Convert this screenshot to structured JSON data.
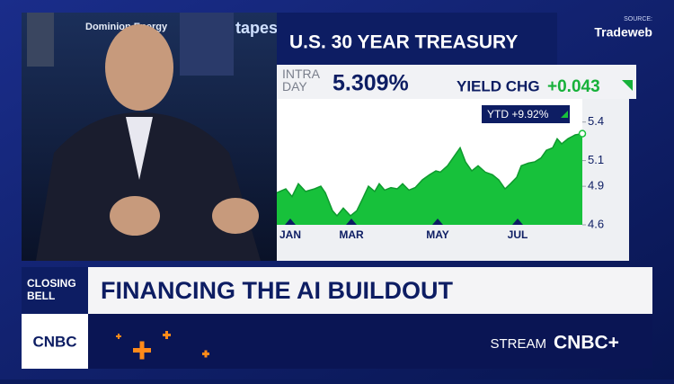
{
  "background": {
    "signs": [
      "Dominion Energy",
      "tapes"
    ]
  },
  "source": {
    "label": "SOURCE:",
    "name": "Tradeweb"
  },
  "chart_data": {
    "type": "area",
    "title": "U.S. 30 YEAR TREASURY",
    "intraday_label": "INTRA DAY",
    "intraday_value": "5.309%",
    "change_label": "YIELD CHG",
    "change_value": "+0.043",
    "annotation": "YTD +9.92%",
    "color": "#17c13b",
    "x": [
      0,
      1,
      1.7,
      2.4,
      3.2,
      4.2,
      4.9,
      5.4,
      6.2,
      6.7,
      7.4,
      8.2,
      8.9,
      9.6,
      10.2,
      10.9,
      11.4,
      12,
      12.7,
      13.4,
      14,
      14.7,
      15.4,
      16.2,
      17,
      17.7,
      18.2,
      19,
      19.7,
      20.4,
      21,
      21.7,
      22.4,
      23.2,
      24,
      24.7,
      25.4,
      26,
      26.7,
      27.2,
      28,
      28.7,
      29.4,
      30,
      30.7,
      31.2,
      31.7,
      32.4,
      33.2,
      34
    ],
    "values": [
      4.85,
      4.88,
      4.82,
      4.92,
      4.86,
      4.88,
      4.9,
      4.85,
      4.71,
      4.67,
      4.73,
      4.67,
      4.71,
      4.81,
      4.9,
      4.86,
      4.92,
      4.87,
      4.89,
      4.88,
      4.92,
      4.87,
      4.89,
      4.95,
      4.99,
      5.02,
      5.01,
      5.06,
      5.13,
      5.2,
      5.09,
      5.02,
      5.06,
      5.01,
      4.99,
      4.95,
      4.88,
      4.92,
      4.97,
      5.06,
      5.08,
      5.09,
      5.12,
      5.18,
      5.2,
      5.27,
      5.23,
      5.27,
      5.3,
      5.31
    ],
    "xlim": [
      0,
      34
    ],
    "xticks": [
      {
        "value": 1.5,
        "label": "JAN"
      },
      {
        "value": 8.3,
        "label": "MAR"
      },
      {
        "value": 17.9,
        "label": "MAY"
      },
      {
        "value": 26.8,
        "label": "JUL"
      }
    ],
    "ylim": [
      4.6,
      5.65
    ],
    "yticks": [
      5.4,
      5.1,
      4.9,
      4.6
    ]
  },
  "lower_third": {
    "show": "CLOSING BELL",
    "headline": "FINANCING THE AI BUILDOUT",
    "network": "CNBC",
    "stream_label": "STREAM",
    "stream_brand": "CNBC+"
  }
}
